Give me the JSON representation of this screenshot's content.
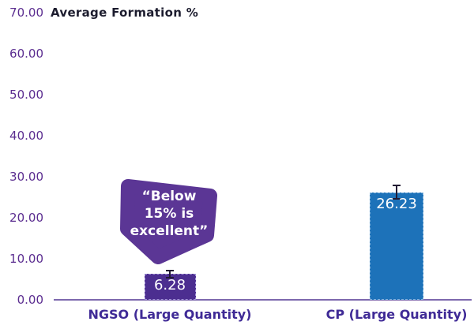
{
  "title": "Average Formation %",
  "colors": {
    "background": "#ffffff",
    "title_text": "#1c1c2e",
    "ytick_text": "#5b2d90",
    "category_text": "#3f2a96",
    "axis_line": "#7d68ae",
    "bar_ngso_fill": "#4c2e90",
    "bar_ngso_border": "#9f8fd4",
    "bar_cp_fill": "#1d72b9",
    "bar_cp_border": "#7fb2dd",
    "value_text": "#ffffff",
    "error_bar": "#221a33",
    "callout_fill": "#5b3695",
    "callout_text": "#ffffff"
  },
  "callout": {
    "full_text": "“Below 15% is excellent”",
    "lines": [
      "“Below",
      "15% is",
      "excellent”"
    ]
  },
  "chart_data": {
    "type": "bar",
    "title": "Average Formation %",
    "categories": [
      "NGSO (Large Quantity)",
      "CP (Large Quantity)"
    ],
    "values": [
      6.28,
      26.23
    ],
    "value_labels": [
      "6.28",
      "26.23"
    ],
    "errors": [
      0.8,
      1.6
    ],
    "ylim": [
      0,
      70
    ],
    "ytick_step": 10,
    "ytick_labels": [
      "0.00",
      "10.00",
      "20.00",
      "30.00",
      "40.00",
      "50.00",
      "60.00",
      "70.00"
    ],
    "xlabel": "",
    "ylabel": "",
    "grid": false,
    "legend": "none",
    "annotation": "“Below 15% is excellent”"
  }
}
